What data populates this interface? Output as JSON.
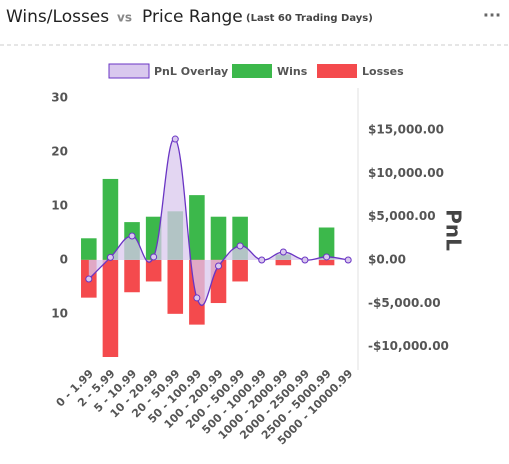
{
  "chart_data": {
    "type": "bar",
    "title": "Wins/Losses",
    "title_connector": "vs",
    "title_second": "Price Range",
    "subtitle": "(Last 60 Trading Days)",
    "menu": "···",
    "categories": [
      "0 - 1.99",
      "2 - 5.99",
      "5 - 10.99",
      "10 - 20.99",
      "20 - 50.99",
      "50 - 100.99",
      "100 - 200.99",
      "200 - 500.99",
      "500 - 1000.99",
      "1000 - 2000.99",
      "2000 - 2500.99",
      "2500 - 5000.99",
      "5000 - 10000.99"
    ],
    "series": [
      {
        "name": "PnL Overlay",
        "color": "#6a35c4",
        "fill": "#d9c8ee",
        "axis": "y2",
        "values": [
          -2200,
          300,
          2770,
          350,
          13960,
          -4380,
          -690,
          1620,
          0,
          920,
          0,
          350,
          0
        ]
      },
      {
        "name": "Wins",
        "color": "#3cb84b",
        "values": [
          4,
          15,
          7,
          8,
          9,
          12,
          8,
          8,
          0,
          1,
          0,
          6,
          0
        ]
      },
      {
        "name": "Losses",
        "color": "#f44a4d",
        "values": [
          -7,
          -18,
          -6,
          -4,
          -10,
          -12,
          -8,
          -4,
          0,
          -1,
          0,
          -1,
          0
        ]
      }
    ],
    "ylim": [
      -18,
      30
    ],
    "yticks": [
      30,
      20,
      10,
      0,
      {
        "value": -10,
        "label": "10"
      }
    ],
    "y2lim": [
      -11200,
      18700
    ],
    "y2ticks": [
      {
        "value": 15000,
        "label": "$15,000.00"
      },
      {
        "value": 10000,
        "label": "$10,000.00"
      },
      {
        "value": 5000,
        "label": "$5,000.00"
      },
      {
        "value": 0,
        "label": "$0.00"
      },
      {
        "value": -5000,
        "label": "-$5,000.00"
      },
      {
        "value": -10000,
        "label": "-$10,000.00"
      }
    ],
    "y2label": "PnL"
  }
}
